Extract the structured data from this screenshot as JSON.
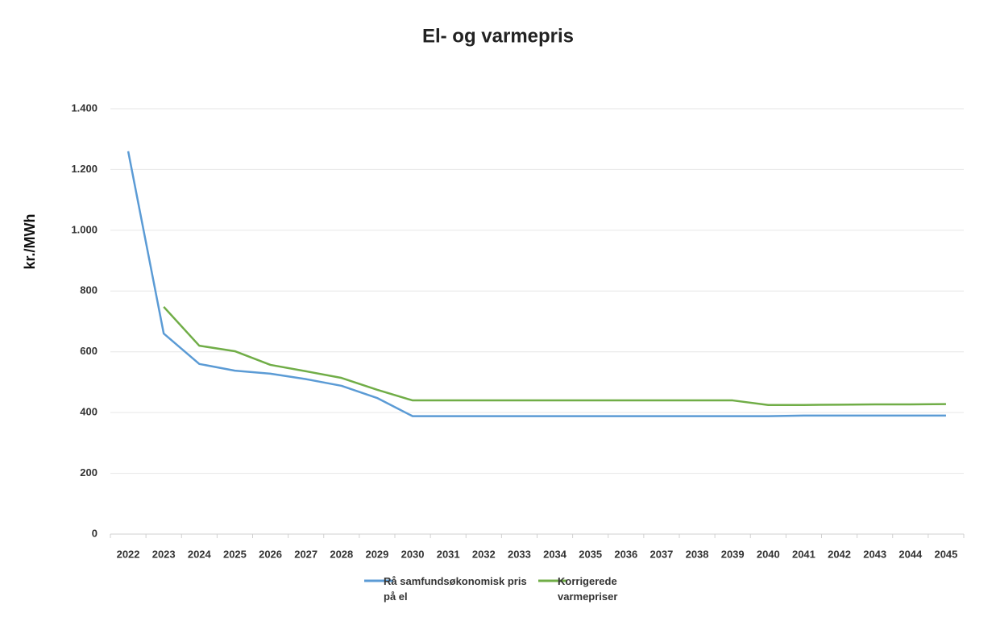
{
  "chart_data": {
    "type": "line",
    "title": "El- og varmepris",
    "y_label": "kr./MWh",
    "categories": [
      "2022",
      "2023",
      "2024",
      "2025",
      "2026",
      "2027",
      "2028",
      "2029",
      "2030",
      "2031",
      "2032",
      "2033",
      "2034",
      "2035",
      "2036",
      "2037",
      "2038",
      "2039",
      "2040",
      "2041",
      "2042",
      "2043",
      "2044",
      "2045"
    ],
    "series": [
      {
        "name": "Rå samfundsøkonomisk pris på el",
        "color": "#5b9bd5",
        "values": [
          1260,
          660,
          560,
          538,
          528,
          510,
          488,
          448,
          388,
          388,
          388,
          388,
          388,
          388,
          388,
          388,
          388,
          388,
          388,
          390,
          390,
          390,
          390,
          390
        ]
      },
      {
        "name": "Korrigerede varmepriser",
        "color": "#70ad47",
        "values": [
          null,
          748,
          620,
          602,
          557,
          536,
          514,
          475,
          440,
          440,
          440,
          440,
          440,
          440,
          440,
          440,
          440,
          440,
          425,
          425,
          426,
          427,
          427,
          428
        ]
      }
    ],
    "ylim": [
      0,
      1400
    ],
    "yticks": [
      0,
      200,
      400,
      600,
      800,
      {
        "value": 1000,
        "label": "1.000"
      },
      {
        "value": 1200,
        "label": "1.200"
      },
      {
        "value": 1400,
        "label": "1.400"
      }
    ],
    "grid": true,
    "legend": "bottom"
  }
}
